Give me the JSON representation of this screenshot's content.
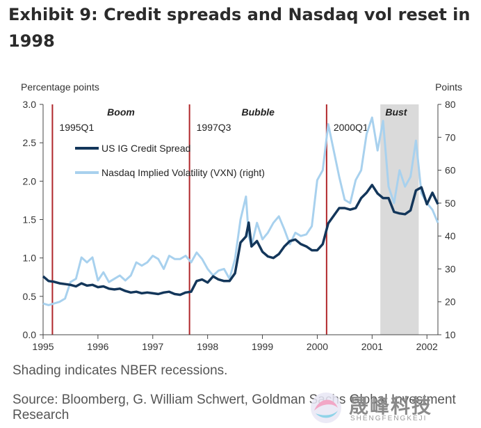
{
  "title": "Exhibit 9: Credit spreads and Nasdaq vol reset in 1998",
  "note": "Shading indicates NBER recessions.",
  "source": "Source: Bloomberg, G. William Schwert, Goldman Sachs Global Investment Research",
  "watermark": {
    "text": "晟峰科技",
    "sub": "SHENGFENGKEJI"
  },
  "chart_data": {
    "type": "line",
    "ylabel_left": "Percentage points",
    "ylabel_right": "Points",
    "xlim": [
      1995.0,
      2002.2
    ],
    "ylim_left": [
      0.0,
      3.0
    ],
    "ylim_right": [
      10,
      80
    ],
    "x_ticks": [
      "1995",
      "1996",
      "1997",
      "1998",
      "1999",
      "2000",
      "2001",
      "2002"
    ],
    "y_ticks_left": [
      "0.0",
      "0.5",
      "1.0",
      "1.5",
      "2.0",
      "2.5",
      "3.0"
    ],
    "y_ticks_right": [
      "10",
      "20",
      "30",
      "40",
      "50",
      "60",
      "70",
      "80"
    ],
    "recession": {
      "start": 2001.15,
      "end": 2001.85
    },
    "vlines": [
      {
        "x": 1995.17,
        "label": "1995Q1",
        "phase": "Boom"
      },
      {
        "x": 1997.67,
        "label": "1997Q3",
        "phase": "Bubble"
      },
      {
        "x": 2000.17,
        "label": "2000Q1",
        "phase": "Bust"
      }
    ],
    "legend": [
      "US IG Credit Spread",
      "Nasdaq Implied Volatility (VXN) (right)"
    ],
    "colors": {
      "credit": "#13365a",
      "vxn": "#a8d1ee",
      "vline": "#b0262a",
      "shade": "#dadada"
    },
    "series": [
      {
        "name": "US IG Credit Spread",
        "axis": "left",
        "x": [
          1995.0,
          1995.1,
          1995.2,
          1995.3,
          1995.4,
          1995.5,
          1995.6,
          1995.7,
          1995.8,
          1995.9,
          1996.0,
          1996.1,
          1996.2,
          1996.3,
          1996.4,
          1996.5,
          1996.6,
          1996.7,
          1996.8,
          1996.9,
          1997.0,
          1997.1,
          1997.2,
          1997.3,
          1997.4,
          1997.5,
          1997.6,
          1997.7,
          1997.8,
          1997.9,
          1998.0,
          1998.1,
          1998.2,
          1998.3,
          1998.4,
          1998.5,
          1998.6,
          1998.7,
          1998.75,
          1998.8,
          1998.9,
          1999.0,
          1999.1,
          1999.2,
          1999.3,
          1999.4,
          1999.5,
          1999.6,
          1999.7,
          1999.8,
          1999.9,
          2000.0,
          2000.1,
          2000.2,
          2000.3,
          2000.4,
          2000.5,
          2000.6,
          2000.7,
          2000.8,
          2000.9,
          2001.0,
          2001.1,
          2001.2,
          2001.3,
          2001.4,
          2001.5,
          2001.6,
          2001.7,
          2001.8,
          2001.9,
          2002.0,
          2002.1,
          2002.2
        ],
        "values": [
          0.76,
          0.7,
          0.69,
          0.67,
          0.66,
          0.65,
          0.63,
          0.67,
          0.64,
          0.65,
          0.62,
          0.63,
          0.6,
          0.59,
          0.6,
          0.57,
          0.55,
          0.56,
          0.54,
          0.55,
          0.54,
          0.53,
          0.55,
          0.56,
          0.53,
          0.52,
          0.55,
          0.56,
          0.7,
          0.72,
          0.68,
          0.76,
          0.72,
          0.7,
          0.7,
          0.8,
          1.2,
          1.28,
          1.46,
          1.15,
          1.22,
          1.08,
          1.02,
          1.0,
          1.05,
          1.15,
          1.22,
          1.24,
          1.18,
          1.15,
          1.1,
          1.1,
          1.18,
          1.45,
          1.55,
          1.65,
          1.65,
          1.63,
          1.65,
          1.78,
          1.85,
          1.95,
          1.84,
          1.78,
          1.78,
          1.6,
          1.58,
          1.57,
          1.62,
          1.88,
          1.92,
          1.7,
          1.85,
          1.7
        ]
      },
      {
        "name": "Nasdaq Implied Volatility (VXN) (right)",
        "axis": "right",
        "x": [
          1995.0,
          1995.1,
          1995.2,
          1995.3,
          1995.4,
          1995.5,
          1995.6,
          1995.7,
          1995.8,
          1995.9,
          1996.0,
          1996.1,
          1996.2,
          1996.3,
          1996.4,
          1996.5,
          1996.6,
          1996.7,
          1996.8,
          1996.9,
          1997.0,
          1997.1,
          1997.2,
          1997.3,
          1997.4,
          1997.5,
          1997.6,
          1997.7,
          1997.8,
          1997.9,
          1998.0,
          1998.1,
          1998.2,
          1998.3,
          1998.4,
          1998.5,
          1998.6,
          1998.7,
          1998.75,
          1998.8,
          1998.9,
          1999.0,
          1999.1,
          1999.2,
          1999.3,
          1999.4,
          1999.5,
          1999.6,
          1999.7,
          1999.8,
          1999.9,
          2000.0,
          2000.1,
          2000.2,
          2000.3,
          2000.4,
          2000.5,
          2000.6,
          2000.7,
          2000.8,
          2000.9,
          2001.0,
          2001.1,
          2001.2,
          2001.3,
          2001.4,
          2001.5,
          2001.6,
          2001.7,
          2001.8,
          2001.9,
          2002.0,
          2002.1,
          2002.2
        ],
        "values": [
          19.5,
          19.0,
          19.5,
          20,
          21,
          26,
          27,
          33.5,
          32,
          33.5,
          26.5,
          29,
          26,
          27,
          28,
          26.5,
          28,
          32,
          31,
          32,
          34,
          33,
          30,
          34,
          33,
          33,
          34,
          32,
          35,
          33,
          30,
          28,
          29.5,
          30,
          27,
          33,
          45,
          52,
          40,
          37,
          44,
          39,
          41,
          44,
          46,
          42,
          37.5,
          41,
          40,
          40.5,
          43,
          57,
          60,
          74,
          66,
          58,
          51,
          50,
          57,
          60,
          71,
          76,
          66,
          75,
          55,
          50,
          60,
          55,
          58,
          69,
          53,
          50,
          48,
          44
        ]
      }
    ]
  }
}
